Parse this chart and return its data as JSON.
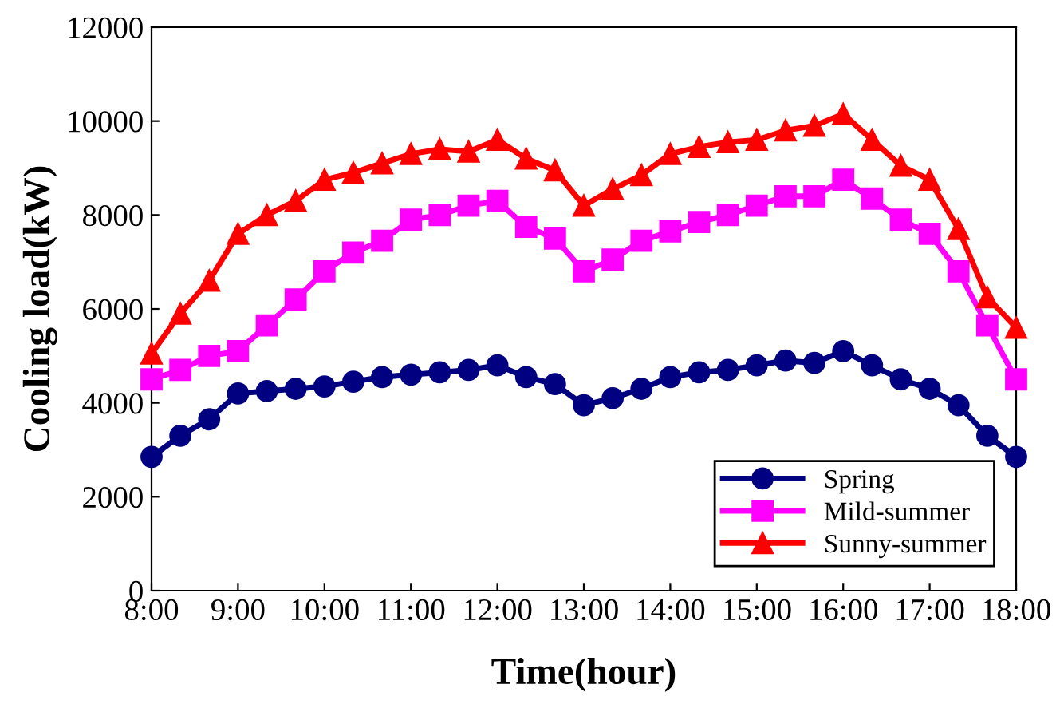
{
  "chart_data": {
    "type": "line",
    "xlabel": "Time(hour)",
    "ylabel": "Cooling load(kW)",
    "x": [
      8,
      8.3333,
      8.6667,
      9,
      9.3333,
      9.6667,
      10,
      10.3333,
      10.6667,
      11,
      11.3333,
      11.6667,
      12,
      12.3333,
      12.6667,
      13,
      13.3333,
      13.6667,
      14,
      14.3333,
      14.6667,
      15,
      15.3333,
      15.6667,
      16,
      16.3333,
      16.6667,
      17,
      17.3333,
      17.6667,
      18
    ],
    "series": [
      {
        "name": "Spring",
        "color": "#000080",
        "marker": "circle",
        "values": [
          2850,
          3300,
          3650,
          4200,
          4250,
          4300,
          4350,
          4450,
          4550,
          4600,
          4650,
          4700,
          4800,
          4550,
          4400,
          3950,
          4100,
          4300,
          4550,
          4650,
          4700,
          4800,
          4900,
          4850,
          5100,
          4800,
          4500,
          4300,
          3950,
          3300,
          2850
        ]
      },
      {
        "name": "Mild-summer",
        "color": "#ff00ff",
        "marker": "square",
        "values": [
          4500,
          4700,
          5000,
          5100,
          5650,
          6200,
          6800,
          7200,
          7450,
          7900,
          8000,
          8200,
          8300,
          7750,
          7500,
          6800,
          7050,
          7450,
          7650,
          7850,
          8000,
          8200,
          8400,
          8400,
          8750,
          8350,
          7900,
          7600,
          6800,
          5650,
          4500
        ]
      },
      {
        "name": "Sunny-summer",
        "color": "#ff0000",
        "marker": "triangle",
        "values": [
          5050,
          5900,
          6600,
          7600,
          8000,
          8300,
          8750,
          8900,
          9100,
          9300,
          9400,
          9350,
          9600,
          9200,
          8950,
          8200,
          8550,
          8850,
          9300,
          9450,
          9550,
          9600,
          9800,
          9900,
          10150,
          9600,
          9050,
          8750,
          7700,
          6250,
          5600
        ]
      }
    ],
    "xlim": [
      8,
      18
    ],
    "xticks": [
      {
        "value": 8,
        "label": "8:00"
      },
      {
        "value": 9,
        "label": "9:00"
      },
      {
        "value": 10,
        "label": "10:00"
      },
      {
        "value": 11,
        "label": "11:00"
      },
      {
        "value": 12,
        "label": "12:00"
      },
      {
        "value": 13,
        "label": "13:00"
      },
      {
        "value": 14,
        "label": "14:00"
      },
      {
        "value": 15,
        "label": "15:00"
      },
      {
        "value": 16,
        "label": "16:00"
      },
      {
        "value": 17,
        "label": "17:00"
      },
      {
        "value": 18,
        "label": "18:00"
      }
    ],
    "ylim": [
      0,
      12000
    ],
    "yticks": [
      0,
      2000,
      4000,
      6000,
      8000,
      10000,
      12000
    ],
    "grid": false,
    "legend": "bottom right",
    "line_style": "solid"
  }
}
